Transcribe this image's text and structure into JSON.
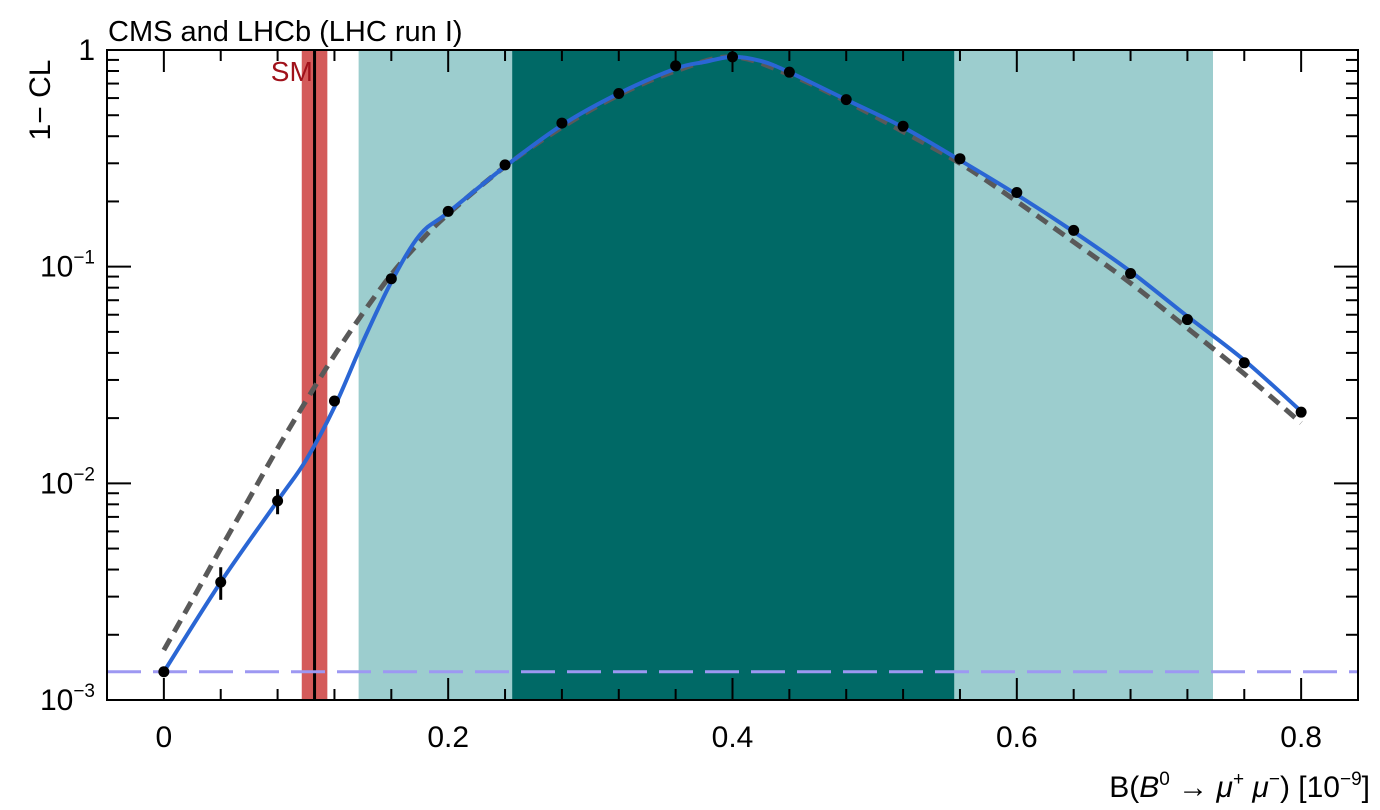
{
  "chart_data": {
    "type": "line",
    "title": "CMS and LHCb (LHC run I)",
    "xlabel_parts": {
      "prefix": "B(",
      "particle": "B",
      "particle_sup": "0",
      "arrow": " → ",
      "mu1": "μ",
      "mu1_sup": "+",
      "mu2": " μ",
      "mu2_sup": "−",
      "unit": ") [10",
      "unit_sup": "−9",
      "close": "]"
    },
    "ylabel": "1− CL",
    "yscale": "log",
    "xlim": [
      -0.04,
      0.84
    ],
    "ylim": [
      0.001,
      1.0
    ],
    "x_ticks": [
      0,
      0.2,
      0.4,
      0.6,
      0.8
    ],
    "x_tick_labels": [
      "0",
      "0.2",
      "0.4",
      "0.6",
      "0.8"
    ],
    "y_tick_labels": [
      {
        "value": 1,
        "base": "1",
        "exp": ""
      },
      {
        "value": 0.1,
        "base": "10",
        "exp": "−1"
      },
      {
        "value": 0.01,
        "base": "10",
        "exp": "−2"
      },
      {
        "value": 0.001,
        "base": "10",
        "exp": "−3"
      }
    ],
    "bands": [
      {
        "range": [
          0.137,
          0.245
        ],
        "color": "#9ccdce"
      },
      {
        "range": [
          0.556,
          0.738
        ],
        "color": "#9ccdce"
      },
      {
        "range": [
          0.245,
          0.556
        ],
        "color": "#006966"
      }
    ],
    "sm": {
      "label": "SM",
      "value": 0.106,
      "band": [
        0.097,
        0.115
      ],
      "band_color": "#d45b5a",
      "line_color": "#000000",
      "label_color": "#a0111a",
      "label_x": 0.09,
      "label_y": 0.8
    },
    "reference_line": {
      "value": 0.00135,
      "color": "#9d98f2"
    },
    "series": [
      {
        "style": "blue-solid",
        "color": "#2a66d4",
        "x": [
          0,
          0.04,
          0.08,
          0.1,
          0.12,
          0.14,
          0.16,
          0.18,
          0.2,
          0.24,
          0.28,
          0.32,
          0.36,
          0.38,
          0.4,
          0.42,
          0.44,
          0.48,
          0.52,
          0.56,
          0.6,
          0.64,
          0.68,
          0.72,
          0.76,
          0.8
        ],
        "y": [
          0.00135,
          0.0035,
          0.0083,
          0.0128,
          0.0225,
          0.045,
          0.085,
          0.14,
          0.178,
          0.29,
          0.45,
          0.63,
          0.82,
          0.88,
          0.93,
          0.89,
          0.79,
          0.59,
          0.44,
          0.31,
          0.215,
          0.145,
          0.095,
          0.059,
          0.037,
          0.0215
        ]
      },
      {
        "style": "grey-dashed",
        "color": "#595959",
        "x": [
          0,
          0.02,
          0.04,
          0.06,
          0.08,
          0.1,
          0.12,
          0.14,
          0.16,
          0.18,
          0.2,
          0.24,
          0.28,
          0.32,
          0.36,
          0.4,
          0.44,
          0.48,
          0.52,
          0.56,
          0.6,
          0.64,
          0.68,
          0.72,
          0.76,
          0.8
        ],
        "y": [
          0.0017,
          0.0029,
          0.005,
          0.0085,
          0.0145,
          0.024,
          0.039,
          0.061,
          0.092,
          0.13,
          0.175,
          0.29,
          0.44,
          0.62,
          0.8,
          0.93,
          0.77,
          0.58,
          0.42,
          0.3,
          0.2,
          0.13,
          0.084,
          0.052,
          0.032,
          0.019
        ]
      }
    ],
    "points": {
      "x": [
        0,
        0.04,
        0.08,
        0.12,
        0.16,
        0.2,
        0.24,
        0.28,
        0.32,
        0.36,
        0.4,
        0.44,
        0.48,
        0.52,
        0.56,
        0.6,
        0.64,
        0.68,
        0.72,
        0.76,
        0.8
      ],
      "y": [
        0.00135,
        0.0035,
        0.0083,
        0.024,
        0.088,
        0.18,
        0.295,
        0.46,
        0.63,
        0.845,
        0.93,
        0.79,
        0.59,
        0.445,
        0.315,
        0.22,
        0.147,
        0.093,
        0.057,
        0.036,
        0.0213
      ],
      "yerr": [
        0,
        0.0006,
        0.0011,
        0,
        0,
        0,
        0,
        0,
        0,
        0,
        0,
        0,
        0,
        0,
        0,
        0,
        0,
        0,
        0,
        0,
        0
      ]
    },
    "grid": false
  }
}
